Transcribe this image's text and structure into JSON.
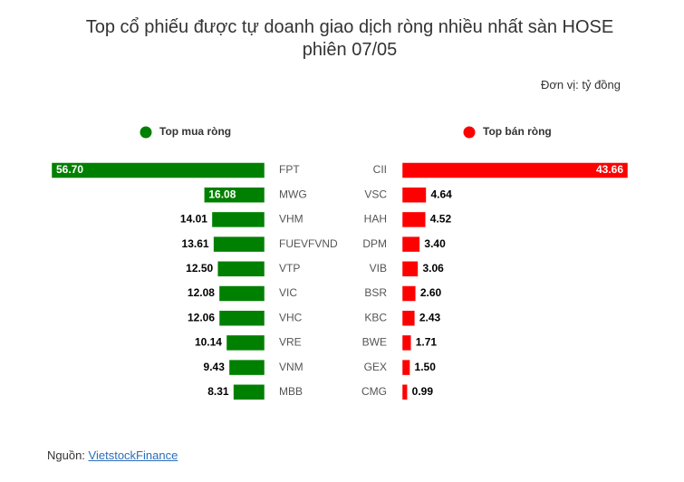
{
  "title": "Top cổ phiếu được tự doanh giao dịch ròng nhiều nhất sàn HOSE phiên 07/05",
  "unit": "Đơn vị: tỷ đồng",
  "source_label": "Nguồn:",
  "source_link": "VietstockFinance",
  "chart_data": [
    {
      "type": "bar",
      "orientation": "horizontal",
      "direction": "left",
      "title": "Top mua ròng",
      "color": "#008000",
      "categories": [
        "FPT",
        "MWG",
        "VHM",
        "FUEVFVND",
        "VTP",
        "VIC",
        "VHC",
        "VRE",
        "VNM",
        "MBB"
      ],
      "values": [
        56.7,
        16.08,
        14.01,
        13.61,
        12.5,
        12.08,
        12.06,
        10.14,
        9.43,
        8.31
      ],
      "value_labels": [
        "56.70",
        "16.08",
        "14.01",
        "13.61",
        "12.50",
        "12.08",
        "12.06",
        "10.14",
        "9.43",
        "8.31"
      ]
    },
    {
      "type": "bar",
      "orientation": "horizontal",
      "direction": "right",
      "title": "Top bán ròng",
      "color": "#ff0000",
      "categories": [
        "CII",
        "VSC",
        "HAH",
        "DPM",
        "VIB",
        "BSR",
        "KBC",
        "BWE",
        "GEX",
        "CMG"
      ],
      "values": [
        43.66,
        4.64,
        4.52,
        3.4,
        3.06,
        2.6,
        2.43,
        1.71,
        1.5,
        0.99
      ],
      "value_labels": [
        "43.66",
        "4.64",
        "4.52",
        "3.40",
        "3.06",
        "2.60",
        "2.43",
        "1.71",
        "1.50",
        "0.99"
      ]
    }
  ]
}
